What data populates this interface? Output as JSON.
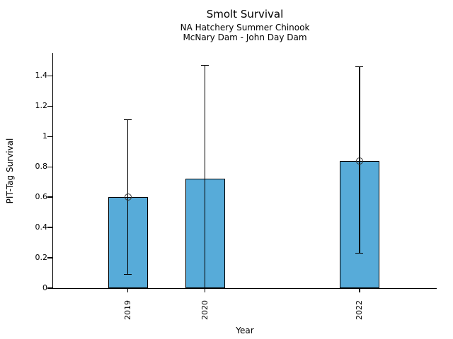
{
  "chart_data": {
    "type": "bar",
    "title": "Smolt Survival",
    "subtitle": [
      "NA Hatchery Summer Chinook",
      "McNary Dam - John Day Dam"
    ],
    "xlabel": "Year",
    "ylabel": "PIT-Tag Survival",
    "categories": [
      "2019",
      "2020",
      "2022"
    ],
    "x": [
      2019,
      2020,
      2022
    ],
    "values": [
      0.6,
      0.72,
      0.84
    ],
    "error_low": [
      0.09,
      0.0,
      0.23
    ],
    "error_high": [
      1.11,
      1.47,
      1.46
    ],
    "point_estimates": [
      0.6,
      null,
      0.84
    ],
    "yticks": [
      0,
      0.2,
      0.4,
      0.6,
      0.8,
      1,
      1.2,
      1.4
    ],
    "ytick_labels": [
      "0",
      "0.2",
      "0.4",
      "0.6",
      "0.8",
      "1",
      "1.2",
      "1.4"
    ],
    "ylim": [
      0,
      1.55
    ],
    "xlim": [
      2018.03,
      2023.0
    ],
    "bar_width_years": 0.51,
    "bar_color": "#57ABD9",
    "bar_edge_color": "#000000",
    "error_color": "#000000",
    "marker_style": "open-circle",
    "grid": false,
    "legend": null
  }
}
